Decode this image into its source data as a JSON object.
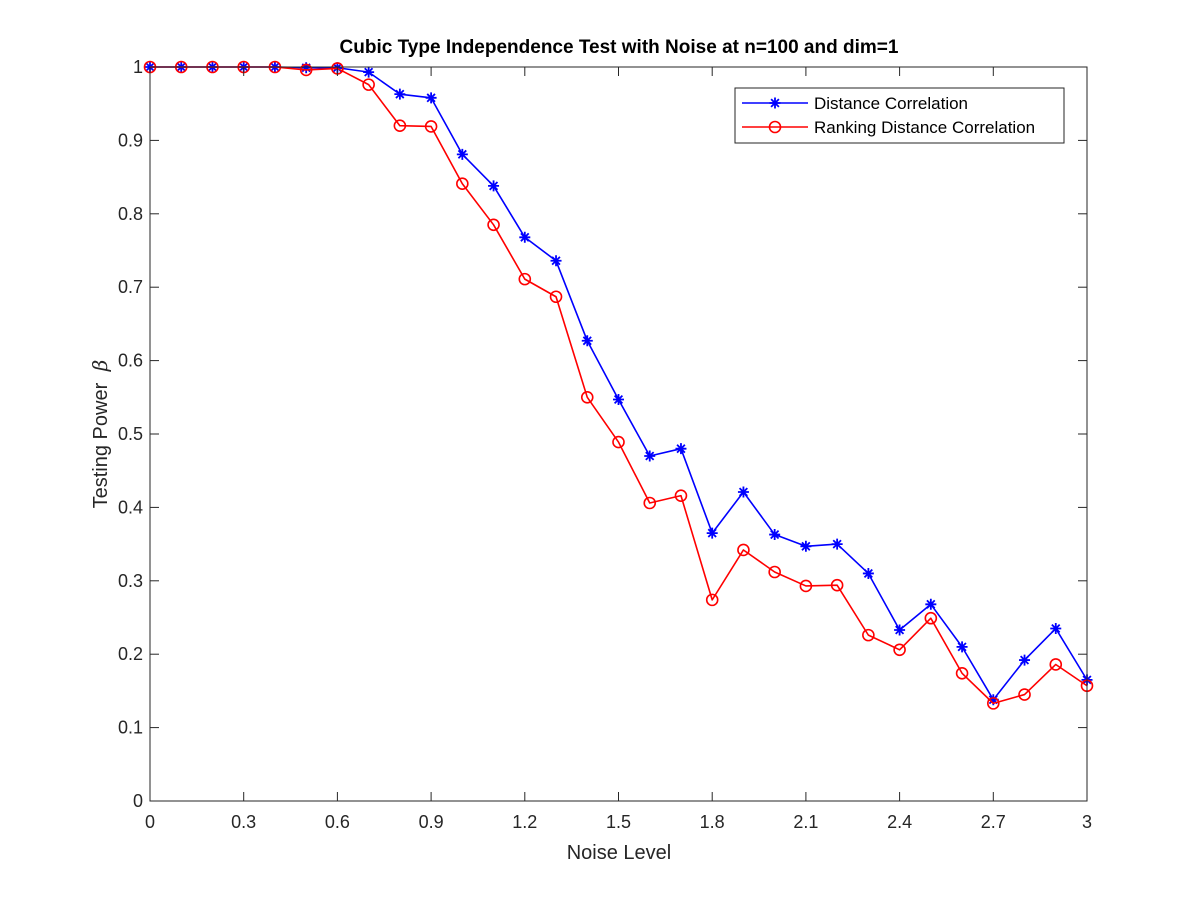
{
  "chart_data": {
    "type": "line",
    "title": "Cubic Type Independence Test with Noise at n=100 and dim=1",
    "xlabel": "Noise Level",
    "ylabel": "Testing Power",
    "ylabel_symbol": "β",
    "xlim": [
      0,
      3
    ],
    "ylim": [
      0,
      1
    ],
    "xticks": [
      0,
      0.3,
      0.6,
      0.9,
      1.2,
      1.5,
      1.8,
      2.1,
      2.4,
      2.7,
      3
    ],
    "xtick_labels": [
      "0",
      "0.3",
      "0.6",
      "0.9",
      "1.2",
      "1.5",
      "1.8",
      "2.1",
      "2.4",
      "2.7",
      "3"
    ],
    "yticks": [
      0,
      0.1,
      0.2,
      0.3,
      0.4,
      0.5,
      0.6,
      0.7,
      0.8,
      0.9,
      1
    ],
    "ytick_labels": [
      "0",
      "0.1",
      "0.2",
      "0.3",
      "0.4",
      "0.5",
      "0.6",
      "0.7",
      "0.8",
      "0.9",
      "1"
    ],
    "grid": false,
    "legend_position": "top-right",
    "x": [
      0,
      0.1,
      0.2,
      0.3,
      0.4,
      0.5,
      0.6,
      0.7,
      0.8,
      0.9,
      1.0,
      1.1,
      1.2,
      1.3,
      1.4,
      1.5,
      1.6,
      1.7,
      1.8,
      1.9,
      2.0,
      2.1,
      2.2,
      2.3,
      2.4,
      2.5,
      2.6,
      2.7,
      2.8,
      2.9,
      3.0
    ],
    "series": [
      {
        "name": "Distance Correlation",
        "color": "#0000ff",
        "marker": "asterisk",
        "values": [
          1.0,
          1.0,
          1.0,
          1.0,
          1.0,
          0.999,
          0.999,
          0.993,
          0.963,
          0.958,
          0.881,
          0.838,
          0.768,
          0.736,
          0.627,
          0.547,
          0.47,
          0.48,
          0.365,
          0.421,
          0.363,
          0.347,
          0.35,
          0.31,
          0.233,
          0.268,
          0.21,
          0.138,
          0.192,
          0.235,
          0.165
        ]
      },
      {
        "name": "Ranking Distance Correlation",
        "color": "#ff0000",
        "marker": "circle",
        "values": [
          1.0,
          1.0,
          1.0,
          1.0,
          1.0,
          0.996,
          0.998,
          0.976,
          0.92,
          0.919,
          0.841,
          0.785,
          0.711,
          0.687,
          0.55,
          0.489,
          0.406,
          0.416,
          0.274,
          0.342,
          0.312,
          0.293,
          0.294,
          0.226,
          0.206,
          0.249,
          0.174,
          0.133,
          0.145,
          0.186,
          0.157
        ]
      }
    ]
  }
}
